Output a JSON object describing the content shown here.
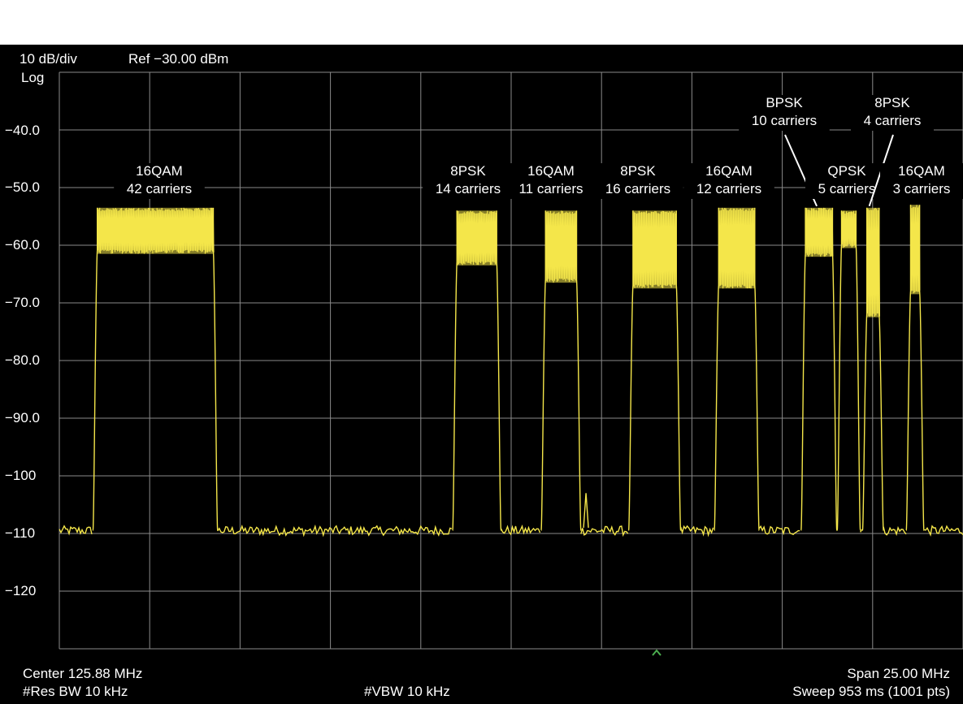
{
  "header": {
    "scale": "10 dB/div",
    "ref": "Ref −30.00 dBm",
    "scale_type": "Log"
  },
  "y_axis_labels": [
    "−40.0",
    "−50.0",
    "−60.0",
    "−70.0",
    "−80.0",
    "−90.0",
    "−100",
    "−110",
    "−120"
  ],
  "footer": {
    "center": "Center  125.88 MHz",
    "res_bw": "#Res BW 10 kHz",
    "vbw": "#VBW 10 kHz",
    "span": "Span 25.00 MHz",
    "sweep": "Sweep 953 ms (1001 pts)"
  },
  "colors": {
    "trace": "#f4e64a",
    "grid": "#8a8a8a",
    "background": "#000000",
    "marker": "#4caf50"
  },
  "chart_data": {
    "type": "line",
    "ylim": [
      -130,
      -30
    ],
    "xlim_mhz": [
      113.38,
      138.38
    ],
    "noise_floor_db": -109.5,
    "grid": true,
    "groups": [
      {
        "line1": "16QAM",
        "line2": "42 carriers",
        "start_mhz": 114.43,
        "end_mhz": 117.64,
        "top_db": -53.5,
        "bottom_db": -61.5
      },
      {
        "line1": "8PSK",
        "line2": "14 carriers",
        "start_mhz": 124.38,
        "end_mhz": 125.48,
        "top_db": -54,
        "bottom_db": -63.5
      },
      {
        "line1": "16QAM",
        "line2": "11 carriers",
        "start_mhz": 126.83,
        "end_mhz": 127.69,
        "top_db": -54,
        "bottom_db": -66.5
      },
      {
        "line1": "8PSK",
        "line2": "16 carriers",
        "start_mhz": 129.25,
        "end_mhz": 130.45,
        "top_db": -54,
        "bottom_db": -67.5
      },
      {
        "line1": "16QAM",
        "line2": "12 carriers",
        "start_mhz": 131.62,
        "end_mhz": 132.62,
        "top_db": -53.5,
        "bottom_db": -67.5
      },
      {
        "line1": "BPSK",
        "line2": "10 carriers",
        "start_mhz": 134.02,
        "end_mhz": 134.77,
        "top_db": -53.5,
        "bottom_db": -62
      },
      {
        "line1": "QPSK",
        "line2": "5 carriers",
        "start_mhz": 135.02,
        "end_mhz": 135.42,
        "top_db": -54,
        "bottom_db": -60.5
      },
      {
        "line1": "8PSK",
        "line2": "4 carriers",
        "start_mhz": 135.72,
        "end_mhz": 136.06,
        "top_db": -53.5,
        "bottom_db": -72.5
      },
      {
        "line1": "16QAM",
        "line2": "3 carriers",
        "start_mhz": 136.93,
        "end_mhz": 137.18,
        "top_db": -53,
        "bottom_db": -68.5
      }
    ]
  }
}
